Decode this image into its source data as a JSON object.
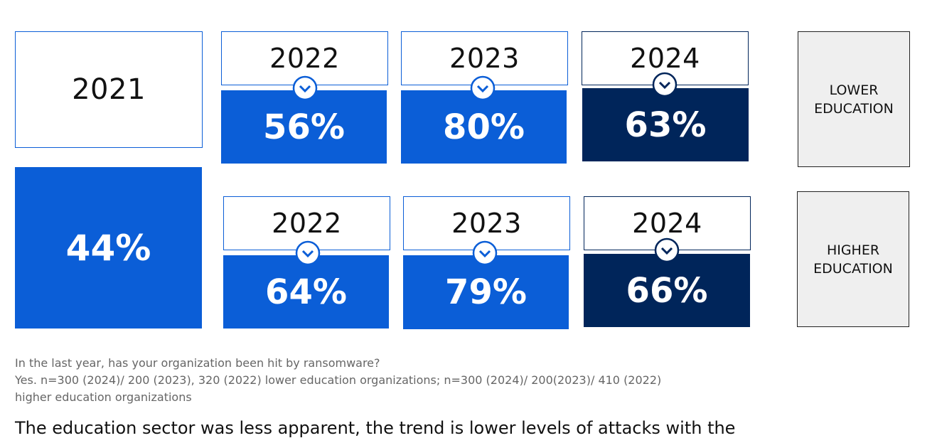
{
  "chart_data": {
    "type": "table",
    "baseline": {
      "year": "2021",
      "value": "44%"
    },
    "rows": [
      {
        "label": "LOWER EDUCATION",
        "cells": [
          {
            "year": "2022",
            "value": "56%"
          },
          {
            "year": "2023",
            "value": "80%"
          },
          {
            "year": "2024",
            "value": "63%"
          }
        ]
      },
      {
        "label": "HIGHER EDUCATION",
        "cells": [
          {
            "year": "2022",
            "value": "64%"
          },
          {
            "year": "2023",
            "value": "79%"
          },
          {
            "year": "2024",
            "value": "66%"
          }
        ]
      }
    ]
  },
  "icons": {
    "chevron": "chevron-down-circle-icon"
  },
  "colors": {
    "blue": "#0b5ed7",
    "navy": "#00255a",
    "label_bg": "#efefef"
  },
  "notes": {
    "question": "In the last year, has your organization been hit by ransomware?",
    "base_line1": "Yes. n=300 (2024)/ 200 (2023), 320 (2022) lower education organizations; n=300 (2024)/ 200(2023)/ 410 (2022)",
    "base_line2": "higher education organizations"
  },
  "body_text": "The education sector was less apparent, the trend is lower levels of attacks with the"
}
